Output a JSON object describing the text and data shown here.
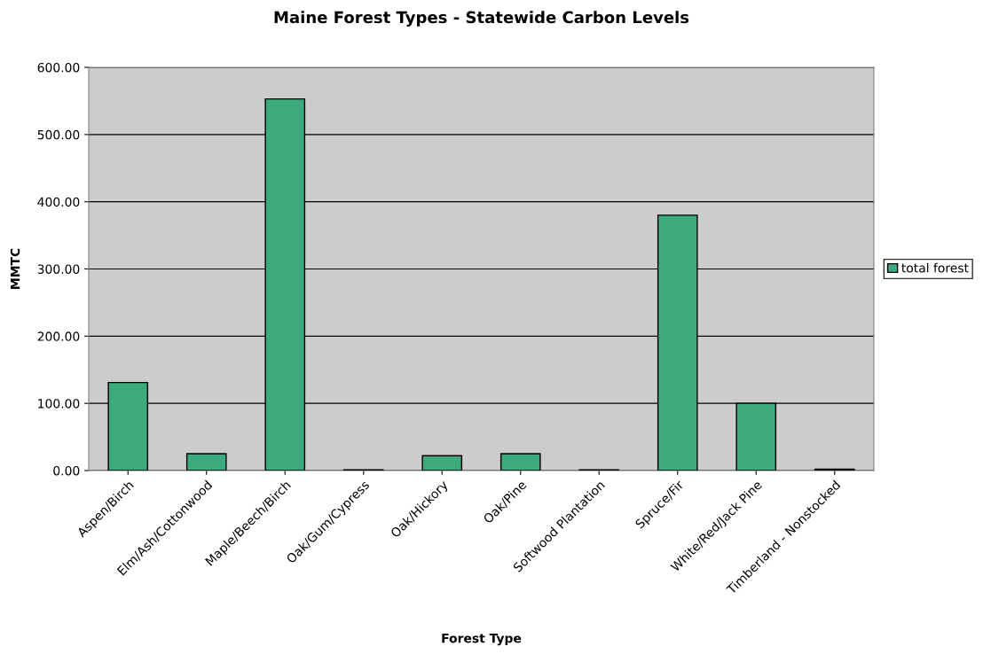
{
  "chart_data": {
    "type": "bar",
    "title": "Maine Forest Types - Statewide Carbon Levels",
    "xlabel": "Forest Type",
    "ylabel": "MMTC",
    "categories": [
      "Aspen/Birch",
      "Elm/Ash/Cottonwood",
      "Maple/Beech/Birch",
      "Oak/Gum/Cypress",
      "Oak/Hickory",
      "Oak/Pine",
      "Softwood Plantation",
      "Spruce/Fir",
      "White/Red/Jack Pine",
      "Timberland - Nonstocked"
    ],
    "series": [
      {
        "name": "total forest",
        "color": "#3daa7d",
        "values": [
          131,
          25,
          553,
          1,
          22,
          25,
          1,
          380,
          100,
          2
        ]
      }
    ],
    "ylim": [
      0,
      600
    ],
    "yticks": [
      {
        "value": 0,
        "label": "0.00"
      },
      {
        "value": 100,
        "label": "100.00"
      },
      {
        "value": 200,
        "label": "200.00"
      },
      {
        "value": 300,
        "label": "300.00"
      },
      {
        "value": 400,
        "label": "400.00"
      },
      {
        "value": 500,
        "label": "500.00"
      },
      {
        "value": 600,
        "label": "600.00"
      }
    ],
    "grid": "y",
    "legend": "right"
  }
}
